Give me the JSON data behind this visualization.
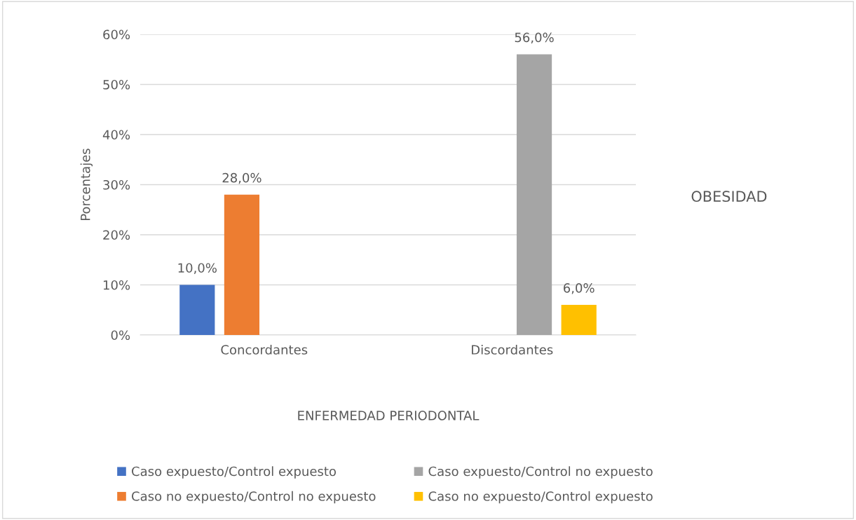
{
  "chart_data": {
    "type": "bar",
    "categories": [
      "Concordantes",
      "Discordantes"
    ],
    "series": [
      {
        "name": "Caso expuesto/Control expuesto",
        "color": "#4472c4",
        "values": [
          10,
          null
        ],
        "value_labels": [
          "10,0%",
          null
        ]
      },
      {
        "name": "Caso no expuesto/Control no expuesto",
        "color": "#ed7d31",
        "values": [
          28,
          null
        ],
        "value_labels": [
          "28,0%",
          null
        ]
      },
      {
        "name": "Caso expuesto/Control no expuesto",
        "color": "#a5a5a5",
        "values": [
          null,
          56
        ],
        "value_labels": [
          null,
          "56,0%"
        ]
      },
      {
        "name": "Caso no expuesto/Control expuesto",
        "color": "#ffc000",
        "values": [
          null,
          6
        ],
        "value_labels": [
          null,
          "6,0%"
        ]
      }
    ],
    "xlabel": "ENFERMEDAD PERIODONTAL",
    "ylabel": "Porcentajes",
    "annotations": [
      "OBESIDAD"
    ],
    "ylim": [
      0,
      60
    ],
    "yticks": [
      {
        "value": 0,
        "label": "0%"
      },
      {
        "value": 10,
        "label": "10%"
      },
      {
        "value": 20,
        "label": "20%"
      },
      {
        "value": 30,
        "label": "30%"
      },
      {
        "value": 40,
        "label": "40%"
      },
      {
        "value": 50,
        "label": "50%"
      },
      {
        "value": 60,
        "label": "60%"
      }
    ],
    "grid": "y",
    "legend": "bottom"
  }
}
